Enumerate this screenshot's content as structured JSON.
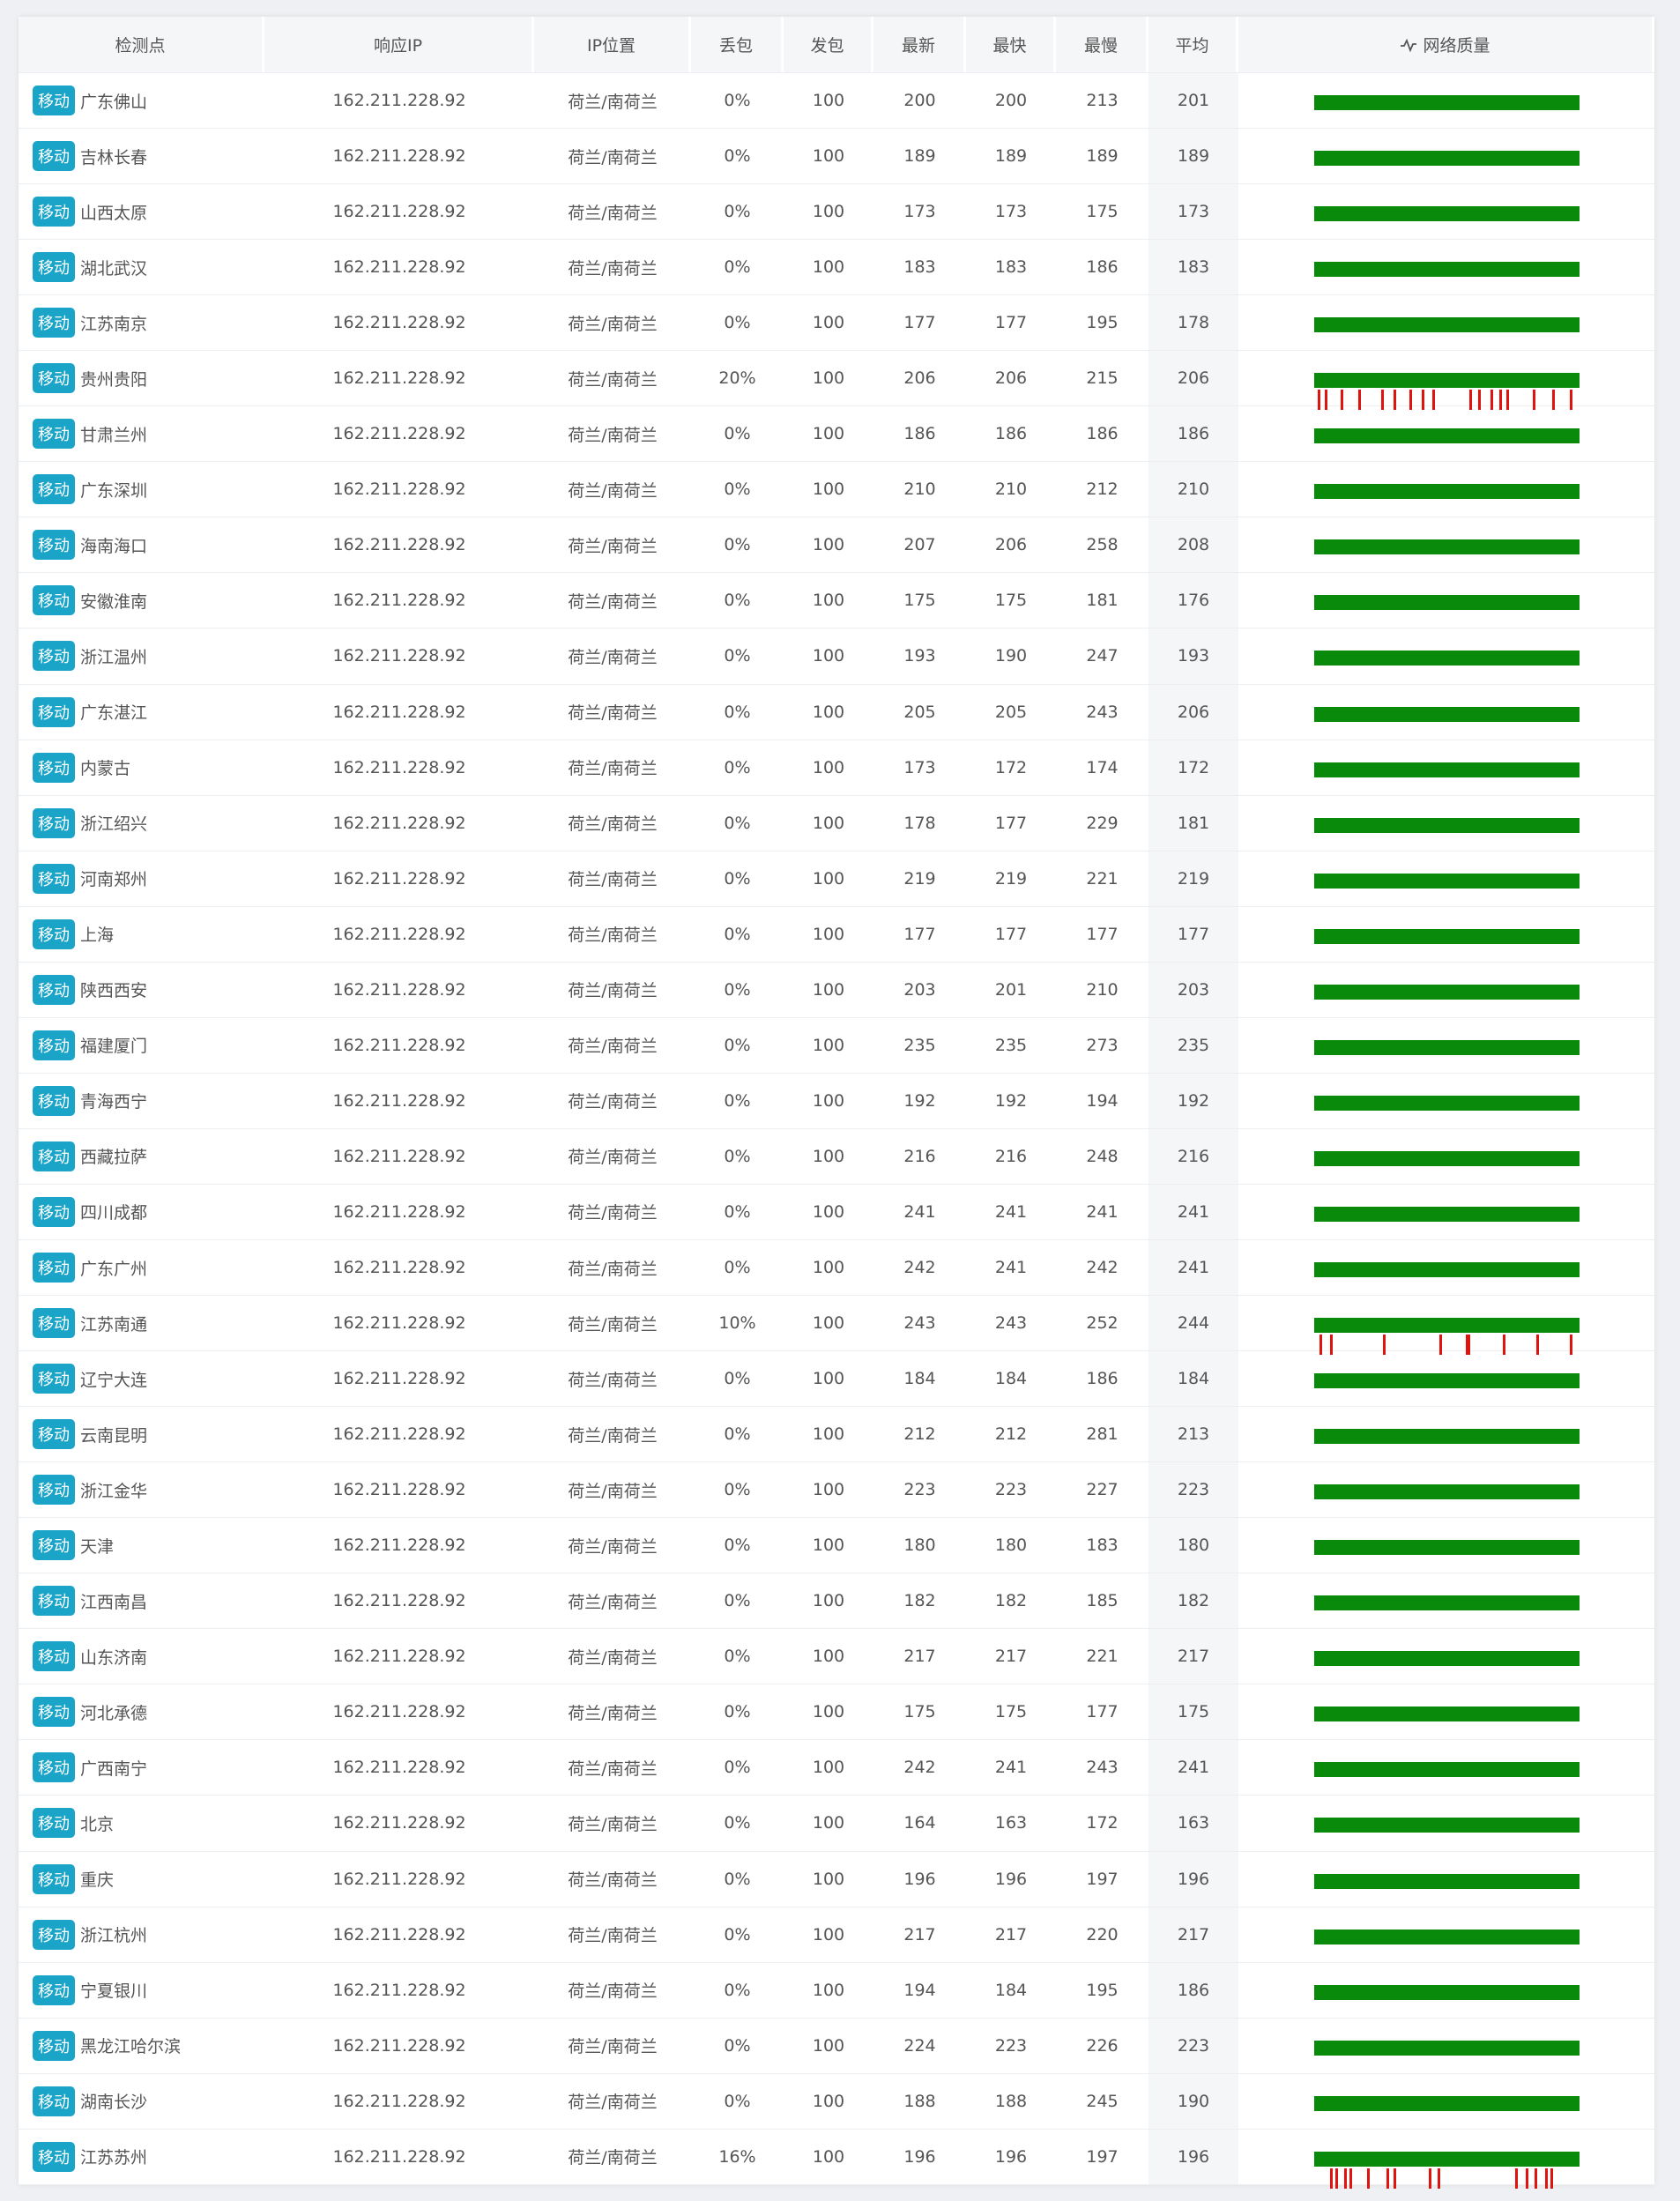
{
  "table": {
    "header": [
      "检测点",
      "响应IP",
      "IP位置",
      "丢包",
      "发包",
      "最新",
      "最快",
      "最慢",
      "平均",
      "网络质量"
    ],
    "rows": [
      [
        "移动",
        "广东佛山",
        "162.211.228.92",
        "荷兰/南荷兰",
        "0%",
        100,
        200,
        200,
        213,
        201
      ],
      [
        "移动",
        "吉林长春",
        "162.211.228.92",
        "荷兰/南荷兰",
        "0%",
        100,
        189,
        189,
        189,
        189
      ],
      [
        "移动",
        "山西太原",
        "162.211.228.92",
        "荷兰/南荷兰",
        "0%",
        100,
        173,
        173,
        175,
        173
      ],
      [
        "移动",
        "湖北武汉",
        "162.211.228.92",
        "荷兰/南荷兰",
        "0%",
        100,
        183,
        183,
        186,
        183
      ],
      [
        "移动",
        "江苏南京",
        "162.211.228.92",
        "荷兰/南荷兰",
        "0%",
        100,
        177,
        177,
        195,
        178
      ],
      [
        "移动",
        "贵州贵阳",
        "162.211.228.92",
        "荷兰/南荷兰",
        "20%",
        100,
        206,
        206,
        215,
        206
      ],
      [
        "移动",
        "甘肃兰州",
        "162.211.228.92",
        "荷兰/南荷兰",
        "0%",
        100,
        186,
        186,
        186,
        186
      ],
      [
        "移动",
        "广东深圳",
        "162.211.228.92",
        "荷兰/南荷兰",
        "0%",
        100,
        210,
        210,
        212,
        210
      ],
      [
        "移动",
        "海南海口",
        "162.211.228.92",
        "荷兰/南荷兰",
        "0%",
        100,
        207,
        206,
        258,
        208
      ],
      [
        "移动",
        "安徽淮南",
        "162.211.228.92",
        "荷兰/南荷兰",
        "0%",
        100,
        175,
        175,
        181,
        176
      ],
      [
        "移动",
        "浙江温州",
        "162.211.228.92",
        "荷兰/南荷兰",
        "0%",
        100,
        193,
        190,
        247,
        193
      ],
      [
        "移动",
        "广东湛江",
        "162.211.228.92",
        "荷兰/南荷兰",
        "0%",
        100,
        205,
        205,
        243,
        206
      ],
      [
        "移动",
        "内蒙古",
        "162.211.228.92",
        "荷兰/南荷兰",
        "0%",
        100,
        173,
        172,
        174,
        172
      ],
      [
        "移动",
        "浙江绍兴",
        "162.211.228.92",
        "荷兰/南荷兰",
        "0%",
        100,
        178,
        177,
        229,
        181
      ],
      [
        "移动",
        "河南郑州",
        "162.211.228.92",
        "荷兰/南荷兰",
        "0%",
        100,
        219,
        219,
        221,
        219
      ],
      [
        "移动",
        "上海",
        "162.211.228.92",
        "荷兰/南荷兰",
        "0%",
        100,
        177,
        177,
        177,
        177
      ],
      [
        "移动",
        "陕西西安",
        "162.211.228.92",
        "荷兰/南荷兰",
        "0%",
        100,
        203,
        201,
        210,
        203
      ],
      [
        "移动",
        "福建厦门",
        "162.211.228.92",
        "荷兰/南荷兰",
        "0%",
        100,
        235,
        235,
        273,
        235
      ],
      [
        "移动",
        "青海西宁",
        "162.211.228.92",
        "荷兰/南荷兰",
        "0%",
        100,
        192,
        192,
        194,
        192
      ],
      [
        "移动",
        "西藏拉萨",
        "162.211.228.92",
        "荷兰/南荷兰",
        "0%",
        100,
        216,
        216,
        248,
        216
      ],
      [
        "移动",
        "四川成都",
        "162.211.228.92",
        "荷兰/南荷兰",
        "0%",
        100,
        241,
        241,
        241,
        241
      ],
      [
        "移动",
        "广东广州",
        "162.211.228.92",
        "荷兰/南荷兰",
        "0%",
        100,
        242,
        241,
        242,
        241
      ],
      [
        "移动",
        "江苏南通",
        "162.211.228.92",
        "荷兰/南荷兰",
        "10%",
        100,
        243,
        243,
        252,
        244
      ],
      [
        "移动",
        "辽宁大连",
        "162.211.228.92",
        "荷兰/南荷兰",
        "0%",
        100,
        184,
        184,
        186,
        184
      ],
      [
        "移动",
        "云南昆明",
        "162.211.228.92",
        "荷兰/南荷兰",
        "0%",
        100,
        212,
        212,
        281,
        213
      ],
      [
        "移动",
        "浙江金华",
        "162.211.228.92",
        "荷兰/南荷兰",
        "0%",
        100,
        223,
        223,
        227,
        223
      ],
      [
        "移动",
        "天津",
        "162.211.228.92",
        "荷兰/南荷兰",
        "0%",
        100,
        180,
        180,
        183,
        180
      ],
      [
        "移动",
        "江西南昌",
        "162.211.228.92",
        "荷兰/南荷兰",
        "0%",
        100,
        182,
        182,
        185,
        182
      ],
      [
        "移动",
        "山东济南",
        "162.211.228.92",
        "荷兰/南荷兰",
        "0%",
        100,
        217,
        217,
        221,
        217
      ],
      [
        "移动",
        "河北承德",
        "162.211.228.92",
        "荷兰/南荷兰",
        "0%",
        100,
        175,
        175,
        177,
        175
      ],
      [
        "移动",
        "广西南宁",
        "162.211.228.92",
        "荷兰/南荷兰",
        "0%",
        100,
        242,
        241,
        243,
        241
      ],
      [
        "移动",
        "北京",
        "162.211.228.92",
        "荷兰/南荷兰",
        "0%",
        100,
        164,
        163,
        172,
        163
      ],
      [
        "移动",
        "重庆",
        "162.211.228.92",
        "荷兰/南荷兰",
        "0%",
        100,
        196,
        196,
        197,
        196
      ],
      [
        "移动",
        "浙江杭州",
        "162.211.228.92",
        "荷兰/南荷兰",
        "0%",
        100,
        217,
        217,
        220,
        217
      ],
      [
        "移动",
        "宁夏银川",
        "162.211.228.92",
        "荷兰/南荷兰",
        "0%",
        100,
        194,
        184,
        195,
        186
      ],
      [
        "移动",
        "黑龙江哈尔滨",
        "162.211.228.92",
        "荷兰/南荷兰",
        "0%",
        100,
        224,
        223,
        226,
        223
      ],
      [
        "移动",
        "湖南长沙",
        "162.211.228.92",
        "荷兰/南荷兰",
        "0%",
        100,
        188,
        188,
        245,
        190
      ],
      [
        "移动",
        "江苏苏州",
        "162.211.228.92",
        "荷兰/南荷兰",
        "16%",
        100,
        196,
        196,
        197,
        196
      ]
    ]
  }
}
